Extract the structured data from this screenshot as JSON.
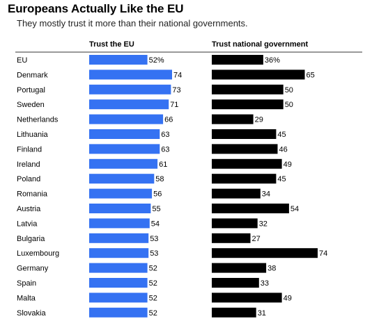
{
  "chart_data": {
    "type": "bar",
    "title": "Europeans Actually Like the EU",
    "subtitle": "They mostly trust it more than their national governments.",
    "categories": [
      "EU",
      "Denmark",
      "Portugal",
      "Sweden",
      "Netherlands",
      "Lithuania",
      "Finland",
      "Ireland",
      "Poland",
      "Romania",
      "Austria",
      "Latvia",
      "Bulgaria",
      "Luxembourg",
      "Germany",
      "Spain",
      "Malta",
      "Slovakia"
    ],
    "series": [
      {
        "name": "Trust the EU",
        "color": "#3572f2",
        "values": [
          52,
          74,
          73,
          71,
          66,
          63,
          63,
          61,
          58,
          56,
          55,
          54,
          53,
          53,
          52,
          52,
          52,
          52
        ],
        "labels": [
          "52%",
          "74",
          "73",
          "71",
          "66",
          "63",
          "63",
          "61",
          "58",
          "56",
          "55",
          "54",
          "53",
          "53",
          "52",
          "52",
          "52",
          "52"
        ]
      },
      {
        "name": "Trust national government",
        "color": "#000000",
        "values": [
          36,
          65,
          50,
          50,
          29,
          45,
          46,
          49,
          45,
          34,
          54,
          32,
          27,
          74,
          38,
          33,
          49,
          31
        ],
        "labels": [
          "36%",
          "65",
          "50",
          "50",
          "29",
          "45",
          "46",
          "49",
          "45",
          "34",
          "54",
          "32",
          "27",
          "74",
          "38",
          "33",
          "49",
          "31"
        ]
      }
    ],
    "ylim": [
      0,
      74
    ],
    "grid": false,
    "legend": "column headers"
  }
}
